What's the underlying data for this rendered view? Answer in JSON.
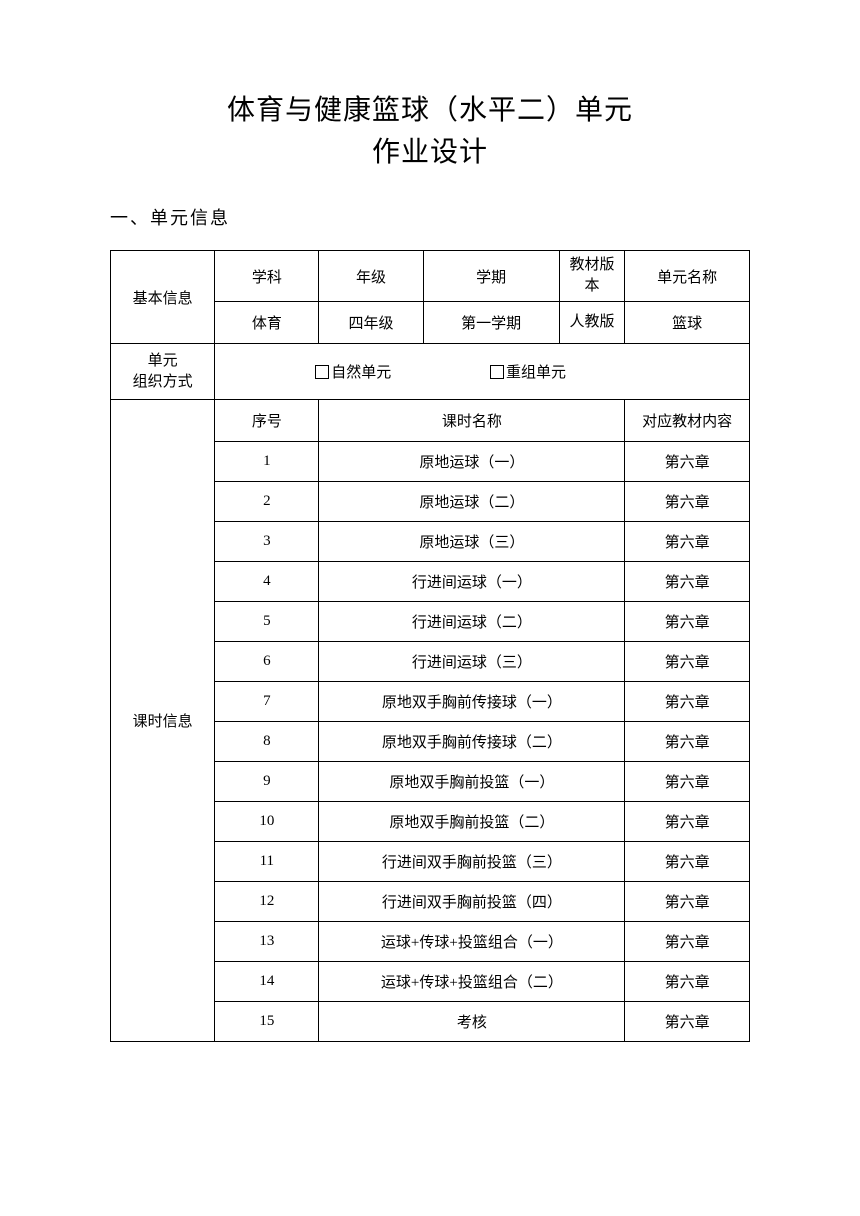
{
  "title": {
    "line1": "体育与健康篮球（水平二）单元",
    "line2": "作业设计"
  },
  "section_heading": "一、单元信息",
  "basic_info": {
    "row_label": "基本信息",
    "headers": {
      "subject": "学科",
      "grade": "年级",
      "term": "学期",
      "version": "教材版本",
      "unit_name": "单元名称"
    },
    "values": {
      "subject": "体育",
      "grade": "四年级",
      "term": "第一学期",
      "version": "人教版",
      "unit_name": "篮球"
    }
  },
  "organization": {
    "label_line1": "单元",
    "label_line2": "组织方式",
    "option1": "自然单元",
    "option2": "重组单元"
  },
  "lesson_info": {
    "row_label": "课时信息",
    "headers": {
      "seq": "序号",
      "lesson_name": "课时名称",
      "textbook": "对应教材内容"
    },
    "rows": [
      {
        "seq": "1",
        "name": "原地运球（一）",
        "textbook": "第六章"
      },
      {
        "seq": "2",
        "name": "原地运球（二）",
        "textbook": "第六章"
      },
      {
        "seq": "3",
        "name": "原地运球（三）",
        "textbook": "第六章"
      },
      {
        "seq": "4",
        "name": "行进间运球（一）",
        "textbook": "第六章"
      },
      {
        "seq": "5",
        "name": "行进间运球（二）",
        "textbook": "第六章"
      },
      {
        "seq": "6",
        "name": "行进间运球（三）",
        "textbook": "第六章"
      },
      {
        "seq": "7",
        "name": "原地双手胸前传接球（一）",
        "textbook": "第六章"
      },
      {
        "seq": "8",
        "name": "原地双手胸前传接球（二）",
        "textbook": "第六章"
      },
      {
        "seq": "9",
        "name": "原地双手胸前投篮（一）",
        "textbook": "第六章"
      },
      {
        "seq": "10",
        "name": "原地双手胸前投篮（二）",
        "textbook": "第六章"
      },
      {
        "seq": "11",
        "name": "行进间双手胸前投篮（三）",
        "textbook": "第六章"
      },
      {
        "seq": "12",
        "name": "行进间双手胸前投篮（四）",
        "textbook": "第六章"
      },
      {
        "seq": "13",
        "name": "运球+传球+投篮组合（一）",
        "textbook": "第六章"
      },
      {
        "seq": "14",
        "name": "运球+传球+投篮组合（二）",
        "textbook": "第六章"
      },
      {
        "seq": "15",
        "name": "考核",
        "textbook": "第六章"
      }
    ]
  },
  "colors": {
    "background": "#ffffff",
    "text": "#000000",
    "border": "#000000"
  }
}
